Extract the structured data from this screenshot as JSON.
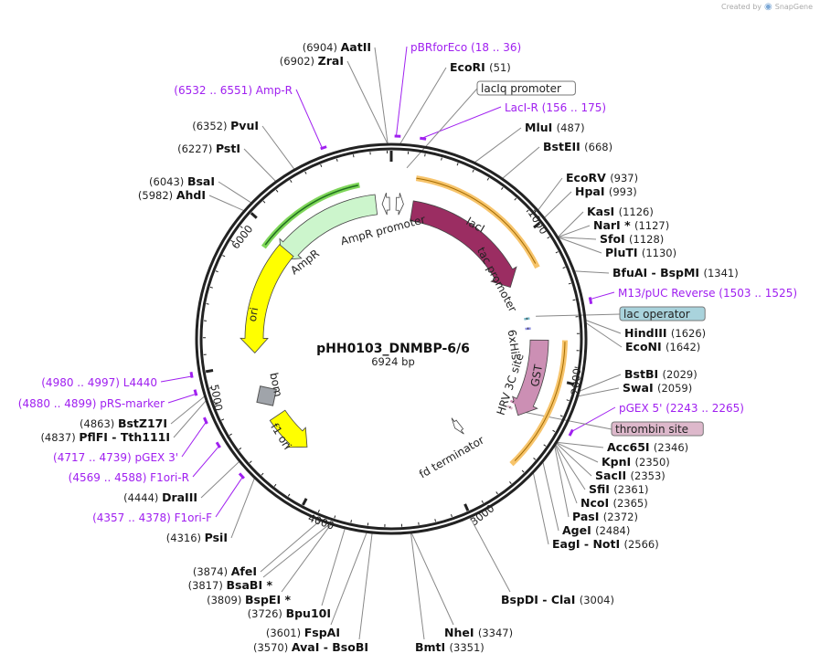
{
  "brand": {
    "created_by": "Created by",
    "name": "SnapGene"
  },
  "plasmid": {
    "name": "pHH0103_DNMBP-6/6",
    "length": "6924 bp",
    "total_bp": 6924
  },
  "ticks": [
    "1000",
    "2000",
    "3000",
    "4000",
    "5000",
    "6000"
  ],
  "enzymes": [
    {
      "name": "AatII",
      "pos": "(6904)"
    },
    {
      "name": "ZraI",
      "pos": "(6902)"
    },
    {
      "name": "PvuI",
      "pos": "(6352)"
    },
    {
      "name": "PstI",
      "pos": "(6227)"
    },
    {
      "name": "BsaI",
      "pos": "(6043)"
    },
    {
      "name": "AhdI",
      "pos": "(5982)"
    },
    {
      "name": "EcoRI",
      "pos": "(51)"
    },
    {
      "name": "MluI",
      "pos": "(487)"
    },
    {
      "name": "BstEII",
      "pos": "(668)"
    },
    {
      "name": "EcoRV",
      "pos": "(937)"
    },
    {
      "name": "HpaI",
      "pos": "(993)"
    },
    {
      "name": "KasI",
      "pos": "(1126)"
    },
    {
      "name": "NarI *",
      "pos": "(1127)"
    },
    {
      "name": "SfoI",
      "pos": "(1128)"
    },
    {
      "name": "PluTI",
      "pos": "(1130)"
    },
    {
      "name": "BfuAI - BspMI",
      "pos": "(1341)"
    },
    {
      "name": "HindIII",
      "pos": "(1626)"
    },
    {
      "name": "EcoNI",
      "pos": "(1642)"
    },
    {
      "name": "BstBI",
      "pos": "(2029)"
    },
    {
      "name": "SwaI",
      "pos": "(2059)"
    },
    {
      "name": "Acc65I",
      "pos": "(2346)"
    },
    {
      "name": "KpnI",
      "pos": "(2350)"
    },
    {
      "name": "SacII",
      "pos": "(2353)"
    },
    {
      "name": "SfiI",
      "pos": "(2361)"
    },
    {
      "name": "NcoI",
      "pos": "(2365)"
    },
    {
      "name": "PasI",
      "pos": "(2372)"
    },
    {
      "name": "AgeI",
      "pos": "(2484)"
    },
    {
      "name": "EagI - NotI",
      "pos": "(2566)"
    },
    {
      "name": "BspDI - ClaI",
      "pos": "(3004)"
    },
    {
      "name": "NheI",
      "pos": "(3347)"
    },
    {
      "name": "BmtI",
      "pos": "(3351)"
    },
    {
      "name": "AvaI - BsoBI",
      "pos": "(3570)"
    },
    {
      "name": "FspAI",
      "pos": "(3601)"
    },
    {
      "name": "Bpu10I",
      "pos": "(3726)"
    },
    {
      "name": "BspEI *",
      "pos": "(3809)"
    },
    {
      "name": "BsaBI *",
      "pos": "(3817)"
    },
    {
      "name": "AfeI",
      "pos": "(3874)"
    },
    {
      "name": "PsiI",
      "pos": "(4316)"
    },
    {
      "name": "DraIII",
      "pos": "(4444)"
    },
    {
      "name": "BstZ17I",
      "pos": "(4863)"
    },
    {
      "name": "PflFI - Tth111I",
      "pos": "(4837)"
    }
  ],
  "primers": [
    {
      "name": "pBRforEco",
      "range": "(18 .. 36)"
    },
    {
      "name": "LacI-R",
      "range": "(156 .. 175)"
    },
    {
      "name": "Amp-R",
      "range": "(6532 .. 6551)"
    },
    {
      "name": "M13/pUC Reverse",
      "range": "(1503 .. 1525)"
    },
    {
      "name": "pGEX 5'",
      "range": "(2243 .. 2265)"
    },
    {
      "name": "L4440",
      "range": "(4980 .. 4997)"
    },
    {
      "name": "pRS-marker",
      "range": "(4880 .. 4899)"
    },
    {
      "name": "pGEX 3'",
      "range": "(4717 .. 4739)"
    },
    {
      "name": "F1ori-R",
      "range": "(4569 .. 4588)"
    },
    {
      "name": "F1ori-F",
      "range": "(4357 .. 4378)"
    }
  ],
  "boxed_features": [
    {
      "name": "lacIq promoter",
      "color": "#ffffff"
    },
    {
      "name": "lac operator",
      "color": "#a9d3dc"
    },
    {
      "name": "thrombin site",
      "color": "#ddb8cb"
    }
  ],
  "features": [
    {
      "name": "lacI",
      "color": "#9b2d62"
    },
    {
      "name": "AmpR",
      "color": "#ccf5cc"
    },
    {
      "name": "AmpR promoter",
      "color": "#ffffff"
    },
    {
      "name": "ori",
      "color": "#ffff00"
    },
    {
      "name": "bom",
      "color": "#a0a4aa"
    },
    {
      "name": "f1 ori",
      "color": "#ffff00"
    },
    {
      "name": "GST",
      "color": "#cc8fb4"
    },
    {
      "name": "tac promoter",
      "color": "#ffffff"
    },
    {
      "name": "6xHis",
      "color": "#8b8be0"
    },
    {
      "name": "HRV 3C site",
      "color": "#cc8fb4"
    },
    {
      "name": "fd terminator",
      "color": "#ffffff"
    }
  ],
  "colors": {
    "primer": "#a020f0",
    "translation": "#f7c46b",
    "ampr_translation": "#7fd65a",
    "ring": "#222222"
  }
}
